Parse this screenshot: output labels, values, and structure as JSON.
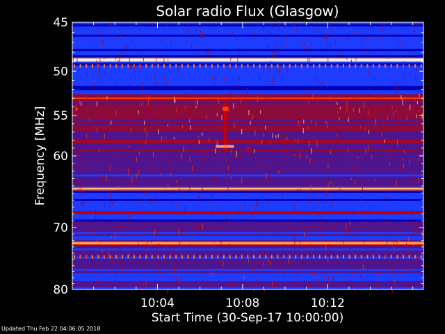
{
  "chart_data": {
    "type": "heatmap",
    "title": "Solar radio Flux (Glasgow)",
    "xlabel": "Start Time (30-Sep-17 10:00:00)",
    "ylabel": "Frequency [MHz]",
    "x_ticks": [
      "10:04",
      "10:08",
      "10:12"
    ],
    "x_tick_minutes": [
      4,
      8,
      12
    ],
    "xlim_minutes": [
      0,
      16.5
    ],
    "y_ticks": [
      45,
      50,
      55,
      60,
      70,
      80
    ],
    "ylim_mhz": [
      45,
      80
    ],
    "y_scale": "log",
    "colormap": [
      "#00003c",
      "#0000b4",
      "#1e3cff",
      "#50148c",
      "#8c0a3c",
      "#c80000",
      "#ff3c00",
      "#ffd28c",
      "#ffffff"
    ],
    "bright_bands_mhz": [
      {
        "freq": 48.8,
        "level": 1.0
      },
      {
        "freq": 53.0,
        "level": 0.7
      },
      {
        "freq": 58.2,
        "level": 0.62
      },
      {
        "freq": 64.4,
        "level": 0.85
      },
      {
        "freq": 67.8,
        "level": 0.6
      },
      {
        "freq": 72.4,
        "level": 0.9
      }
    ],
    "dashed_bands_mhz": [
      49.4,
      74.5
    ],
    "burst": {
      "minute": 7.2,
      "freq_range_mhz": [
        53.5,
        59.5
      ]
    }
  },
  "footer": {
    "updated": "Updated Thu Feb 22 04:06:05 2018"
  }
}
